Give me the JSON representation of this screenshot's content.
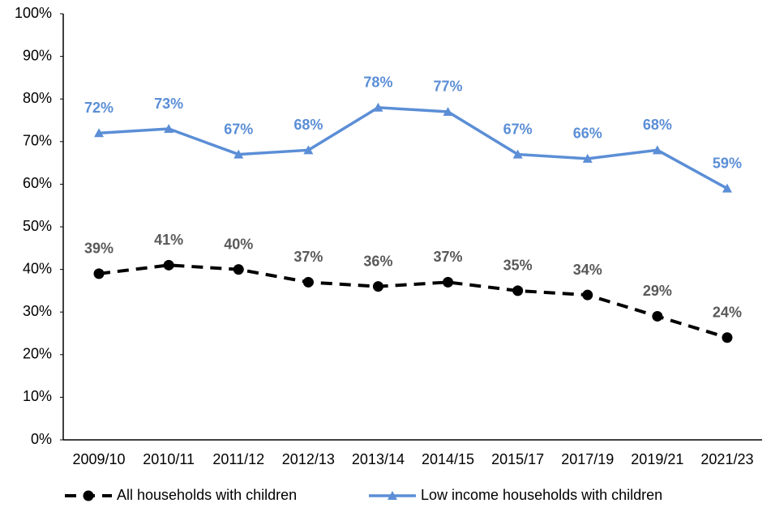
{
  "chart_data": {
    "type": "line",
    "categories": [
      "2009/10",
      "2010/11",
      "2011/12",
      "2012/13",
      "2013/14",
      "2014/15",
      "2015/17",
      "2017/19",
      "2019/21",
      "2021/23"
    ],
    "series": [
      {
        "name": "All households with children",
        "color": "#000000",
        "label_color": "#595959",
        "dash": true,
        "marker": "circle",
        "values": [
          39,
          41,
          40,
          37,
          36,
          37,
          35,
          34,
          29,
          24
        ],
        "value_labels": [
          "39%",
          "41%",
          "40%",
          "37%",
          "36%",
          "37%",
          "35%",
          "34%",
          "29%",
          "24%"
        ]
      },
      {
        "name": "Low income households with children",
        "color": "#5b8ed6",
        "label_color": "#5b8ed6",
        "dash": false,
        "marker": "triangle",
        "values": [
          72,
          73,
          67,
          68,
          78,
          77,
          67,
          66,
          68,
          59
        ],
        "value_labels": [
          "72%",
          "73%",
          "67%",
          "68%",
          "78%",
          "77%",
          "67%",
          "66%",
          "68%",
          "59%"
        ]
      }
    ],
    "ylim": [
      0,
      100
    ],
    "yticks": [
      {
        "value": 0,
        "label": "0%"
      },
      {
        "value": 10,
        "label": "10%"
      },
      {
        "value": 20,
        "label": "20%"
      },
      {
        "value": 30,
        "label": "30%"
      },
      {
        "value": 40,
        "label": "40%"
      },
      {
        "value": 50,
        "label": "50%"
      },
      {
        "value": 60,
        "label": "60%"
      },
      {
        "value": 70,
        "label": "70%"
      },
      {
        "value": 80,
        "label": "80%"
      },
      {
        "value": 90,
        "label": "90%"
      },
      {
        "value": 100,
        "label": "100%"
      }
    ],
    "grid": false,
    "legend": "bottom"
  }
}
